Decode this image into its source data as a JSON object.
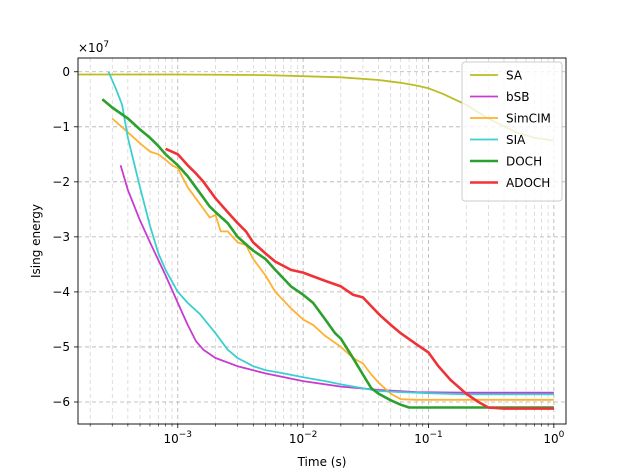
{
  "chart_data": {
    "type": "line",
    "title": "",
    "xlabel": "Time (s)",
    "ylabel": "Ising energy",
    "xscale": "log",
    "xlim": [
      0.00016,
      1.25
    ],
    "ylim": [
      -6.4,
      0.25
    ],
    "y_multiplier_label": "×10",
    "y_multiplier_exponent": "7",
    "x_ticks": [
      {
        "value": 0.001,
        "base": "10",
        "exp": "−3"
      },
      {
        "value": 0.01,
        "base": "10",
        "exp": "−2"
      },
      {
        "value": 0.1,
        "base": "10",
        "exp": "−1"
      },
      {
        "value": 1,
        "base": "10",
        "exp": "0"
      }
    ],
    "y_ticks": [
      {
        "value": 0,
        "label": "0"
      },
      {
        "value": -1,
        "label": "−1"
      },
      {
        "value": -2,
        "label": "−2"
      },
      {
        "value": -3,
        "label": "−3"
      },
      {
        "value": -4,
        "label": "−4"
      },
      {
        "value": -5,
        "label": "−5"
      },
      {
        "value": -6,
        "label": "−6"
      }
    ],
    "grid": true,
    "legend_position": "top-right",
    "series": [
      {
        "name": "SA",
        "color": "#bcbd22",
        "width": 1.8,
        "x": [
          0.00016,
          0.001,
          0.005,
          0.01,
          0.02,
          0.04,
          0.06,
          0.08,
          0.1,
          0.13,
          0.2,
          0.3,
          0.5,
          0.7,
          1.0
        ],
        "y": [
          -0.05,
          -0.05,
          -0.06,
          -0.08,
          -0.1,
          -0.15,
          -0.2,
          -0.25,
          -0.3,
          -0.4,
          -0.6,
          -0.85,
          -1.1,
          -1.2,
          -1.25
        ]
      },
      {
        "name": "bSB",
        "color": "#c73ccf",
        "width": 1.8,
        "x": [
          0.00035,
          0.0004,
          0.0005,
          0.0006,
          0.0008,
          0.001,
          0.0012,
          0.0014,
          0.0016,
          0.002,
          0.003,
          0.005,
          0.01,
          0.02,
          0.04,
          0.08,
          0.2,
          0.5,
          1.0
        ],
        "y": [
          -1.7,
          -2.15,
          -2.7,
          -3.1,
          -3.7,
          -4.2,
          -4.6,
          -4.9,
          -5.05,
          -5.2,
          -5.35,
          -5.48,
          -5.62,
          -5.72,
          -5.78,
          -5.82,
          -5.83,
          -5.83,
          -5.83
        ]
      },
      {
        "name": "SimCIM",
        "color": "#ffb131",
        "width": 1.8,
        "x": [
          0.0003,
          0.0004,
          0.0005,
          0.0006,
          0.0007,
          0.0008,
          0.0009,
          0.001,
          0.0012,
          0.0015,
          0.0018,
          0.002,
          0.0022,
          0.0025,
          0.003,
          0.0035,
          0.004,
          0.005,
          0.006,
          0.008,
          0.01,
          0.012,
          0.015,
          0.02,
          0.025,
          0.03,
          0.035,
          0.04,
          0.05,
          0.06,
          0.08,
          0.1,
          0.15,
          0.2,
          0.3,
          0.5,
          1.0
        ],
        "y": [
          -0.85,
          -1.1,
          -1.3,
          -1.45,
          -1.5,
          -1.6,
          -1.7,
          -1.75,
          -2.1,
          -2.4,
          -2.65,
          -2.6,
          -2.9,
          -2.9,
          -3.1,
          -3.15,
          -3.4,
          -3.7,
          -4.0,
          -4.3,
          -4.5,
          -4.6,
          -4.8,
          -5.0,
          -5.2,
          -5.3,
          -5.5,
          -5.65,
          -5.85,
          -5.95,
          -5.96,
          -5.96,
          -5.96,
          -5.96,
          -5.96,
          -5.96,
          -5.96
        ]
      },
      {
        "name": "SIA",
        "color": "#3ccfd0",
        "width": 1.8,
        "x": [
          0.00028,
          0.00032,
          0.00036,
          0.0004,
          0.0005,
          0.0006,
          0.0007,
          0.0008,
          0.001,
          0.0012,
          0.0015,
          0.002,
          0.0025,
          0.003,
          0.004,
          0.005,
          0.007,
          0.01,
          0.015,
          0.02,
          0.03,
          0.04,
          0.06,
          0.1,
          0.2,
          0.5,
          1.0
        ],
        "y": [
          0.0,
          -0.3,
          -0.6,
          -1.2,
          -2.1,
          -2.8,
          -3.3,
          -3.6,
          -4.0,
          -4.2,
          -4.4,
          -4.75,
          -5.05,
          -5.2,
          -5.35,
          -5.42,
          -5.48,
          -5.55,
          -5.62,
          -5.68,
          -5.75,
          -5.8,
          -5.82,
          -5.84,
          -5.86,
          -5.86,
          -5.86
        ]
      },
      {
        "name": "DOCH",
        "color": "#2ca02c",
        "width": 2.6,
        "x": [
          0.00025,
          0.0003,
          0.0004,
          0.0005,
          0.0006,
          0.0007,
          0.0008,
          0.001,
          0.0012,
          0.0015,
          0.0018,
          0.002,
          0.0025,
          0.003,
          0.004,
          0.005,
          0.006,
          0.008,
          0.01,
          0.012,
          0.015,
          0.018,
          0.02,
          0.025,
          0.03,
          0.035,
          0.04,
          0.05,
          0.06,
          0.07,
          0.08,
          0.1,
          0.2,
          0.5,
          1.0
        ],
        "y": [
          -0.5,
          -0.65,
          -0.85,
          -1.05,
          -1.2,
          -1.35,
          -1.5,
          -1.7,
          -1.9,
          -2.2,
          -2.45,
          -2.55,
          -2.75,
          -3.0,
          -3.25,
          -3.4,
          -3.6,
          -3.9,
          -4.05,
          -4.2,
          -4.5,
          -4.75,
          -4.85,
          -5.2,
          -5.5,
          -5.75,
          -5.85,
          -5.97,
          -6.05,
          -6.1,
          -6.1,
          -6.1,
          -6.1,
          -6.1,
          -6.1
        ]
      },
      {
        "name": "ADOCH",
        "color": "#ef3236",
        "width": 2.6,
        "x": [
          0.0008,
          0.001,
          0.0012,
          0.0014,
          0.0016,
          0.002,
          0.0025,
          0.003,
          0.0035,
          0.004,
          0.005,
          0.006,
          0.008,
          0.01,
          0.015,
          0.02,
          0.025,
          0.03,
          0.04,
          0.05,
          0.06,
          0.08,
          0.1,
          0.12,
          0.15,
          0.2,
          0.25,
          0.3,
          0.4,
          0.5,
          1.0
        ],
        "y": [
          -1.4,
          -1.5,
          -1.7,
          -1.85,
          -2.0,
          -2.3,
          -2.55,
          -2.75,
          -2.9,
          -3.1,
          -3.3,
          -3.45,
          -3.6,
          -3.65,
          -3.8,
          -3.9,
          -4.05,
          -4.1,
          -4.4,
          -4.6,
          -4.75,
          -4.95,
          -5.1,
          -5.35,
          -5.6,
          -5.85,
          -6.0,
          -6.1,
          -6.12,
          -6.12,
          -6.12
        ]
      }
    ]
  }
}
